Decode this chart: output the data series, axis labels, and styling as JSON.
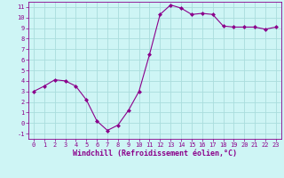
{
  "x": [
    0,
    1,
    2,
    3,
    4,
    5,
    6,
    7,
    8,
    9,
    10,
    11,
    12,
    13,
    14,
    15,
    16,
    17,
    18,
    19,
    20,
    21,
    22,
    23
  ],
  "y": [
    3.0,
    3.5,
    4.1,
    4.0,
    3.5,
    2.2,
    0.2,
    -0.7,
    -0.2,
    1.2,
    3.0,
    6.5,
    10.3,
    11.2,
    10.9,
    10.3,
    10.4,
    10.3,
    9.2,
    9.1,
    9.1,
    9.1,
    8.9,
    9.1
  ],
  "line_color": "#8b008b",
  "marker": "D",
  "marker_size": 2,
  "bg_color": "#cef5f5",
  "grid_color": "#aadddd",
  "xlabel": "Windchill (Refroidissement éolien,°C)",
  "xlabel_color": "#8b008b",
  "tick_color": "#8b008b",
  "ylim": [
    -1.5,
    11.5
  ],
  "xlim": [
    -0.5,
    23.5
  ],
  "yticks": [
    -1,
    0,
    1,
    2,
    3,
    4,
    5,
    6,
    7,
    8,
    9,
    10,
    11
  ],
  "xticks": [
    0,
    1,
    2,
    3,
    4,
    5,
    6,
    7,
    8,
    9,
    10,
    11,
    12,
    13,
    14,
    15,
    16,
    17,
    18,
    19,
    20,
    21,
    22,
    23
  ],
  "label_fontsize": 5.0,
  "xlabel_fontsize": 6.0
}
